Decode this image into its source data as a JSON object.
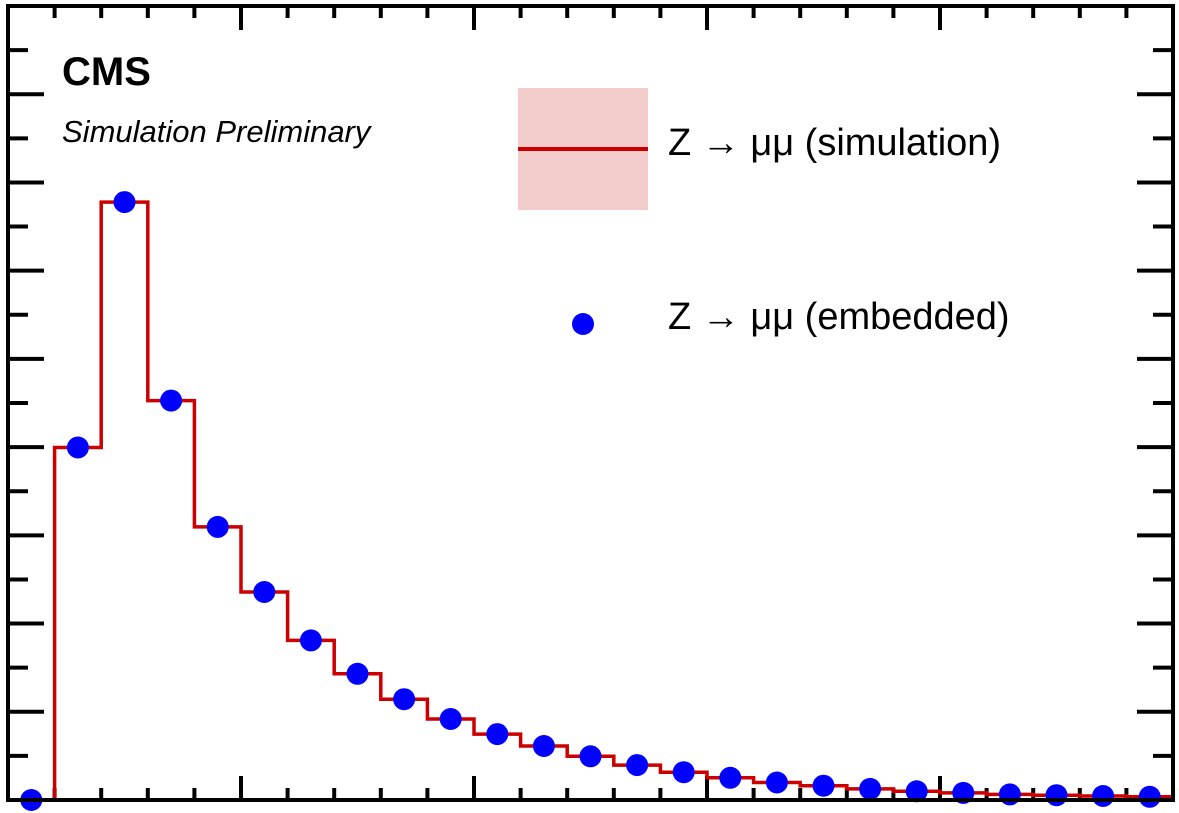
{
  "experiment": "CMS",
  "subtitle": "Simulation Preliminary",
  "chart_data": {
    "type": "histogram",
    "xlabel": "",
    "ylabel": "",
    "n_bins": 25,
    "xlim": [
      0,
      25
    ],
    "ylim": [
      0,
      1.0
    ],
    "grid": false,
    "legend_position": "top-right",
    "series": [
      {
        "name": "Z → μμ (simulation)",
        "style": "step-line-with-band",
        "color": "#cc0000",
        "values": [
          0.0,
          0.444,
          0.753,
          0.503,
          0.344,
          0.262,
          0.201,
          0.159,
          0.127,
          0.102,
          0.083,
          0.068,
          0.055,
          0.044,
          0.035,
          0.028,
          0.022,
          0.018,
          0.014,
          0.011,
          0.009,
          0.007,
          0.006,
          0.005,
          0.004
        ]
      },
      {
        "name": "Z → μμ (embedded)",
        "style": "markers",
        "color": "#0000ff",
        "values": [
          0.0,
          0.444,
          0.753,
          0.503,
          0.344,
          0.262,
          0.201,
          0.159,
          0.127,
          0.102,
          0.083,
          0.068,
          0.055,
          0.044,
          0.035,
          0.028,
          0.022,
          0.018,
          0.014,
          0.011,
          0.009,
          0.007,
          0.006,
          0.005,
          0.004
        ]
      }
    ]
  }
}
